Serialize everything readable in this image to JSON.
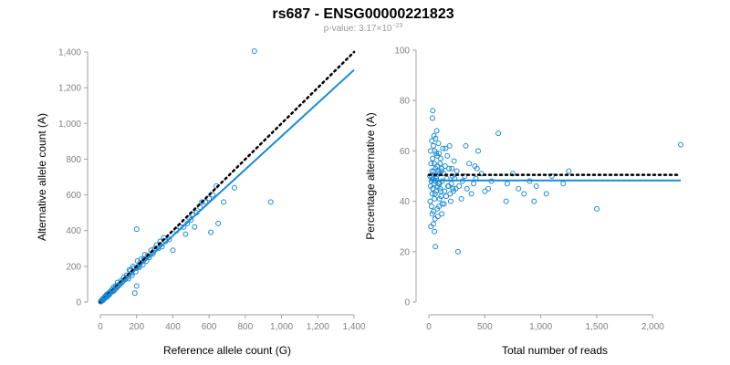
{
  "title": "rs687 - ENSG00000221823",
  "subtitle": {
    "prefix": "p-value: 3.17×10",
    "exponent": "−23"
  },
  "colors": {
    "points": "#1a8ad6",
    "fit": "#1a8ad6",
    "reference": "#000000"
  },
  "chart_data": [
    {
      "type": "scatter",
      "xlabel": "Reference allele count (G)",
      "ylabel": "Alternative allele count (A)",
      "xlim": [
        0,
        1400
      ],
      "ylim": [
        0,
        1400
      ],
      "xticks": [
        0,
        200,
        400,
        600,
        800,
        1000,
        1200,
        1400
      ],
      "yticks": [
        0,
        200,
        400,
        600,
        800,
        1000,
        1200,
        1400
      ],
      "xtick_labels": [
        "0",
        "200",
        "400",
        "600",
        "800",
        "1,000",
        "1,200",
        "1,400"
      ],
      "ytick_labels": [
        "0",
        "200",
        "400",
        "600",
        "800",
        "1,000",
        "1,200",
        "1,400"
      ],
      "reference_line": [
        [
          0,
          0
        ],
        [
          1400,
          1400
        ]
      ],
      "fit_line": [
        [
          0,
          0
        ],
        [
          1400,
          1300
        ]
      ],
      "points": [
        [
          850,
          1405
        ],
        [
          940,
          560
        ],
        [
          200,
          408
        ],
        [
          740,
          640
        ],
        [
          640,
          650
        ],
        [
          620,
          600
        ],
        [
          650,
          440
        ],
        [
          610,
          390
        ],
        [
          560,
          560
        ],
        [
          680,
          560
        ],
        [
          500,
          460
        ],
        [
          520,
          420
        ],
        [
          480,
          440
        ],
        [
          470,
          380
        ],
        [
          400,
          290
        ],
        [
          350,
          360
        ],
        [
          330,
          340
        ],
        [
          300,
          300
        ],
        [
          260,
          260
        ],
        [
          240,
          240
        ],
        [
          220,
          220
        ],
        [
          210,
          200
        ],
        [
          200,
          190
        ],
        [
          180,
          200
        ],
        [
          160,
          180
        ],
        [
          200,
          90
        ],
        [
          190,
          50
        ],
        [
          170,
          160
        ],
        [
          150,
          140
        ],
        [
          140,
          130
        ],
        [
          130,
          140
        ],
        [
          120,
          110
        ],
        [
          110,
          100
        ],
        [
          100,
          95
        ],
        [
          95,
          110
        ],
        [
          90,
          80
        ],
        [
          85,
          90
        ],
        [
          80,
          70
        ],
        [
          75,
          85
        ],
        [
          70,
          60
        ],
        [
          65,
          72
        ],
        [
          60,
          55
        ],
        [
          55,
          60
        ],
        [
          50,
          48
        ],
        [
          48,
          40
        ],
        [
          45,
          50
        ],
        [
          42,
          38
        ],
        [
          40,
          45
        ],
        [
          38,
          30
        ],
        [
          35,
          42
        ],
        [
          32,
          28
        ],
        [
          30,
          35
        ],
        [
          28,
          25
        ],
        [
          25,
          30
        ],
        [
          22,
          18
        ],
        [
          20,
          24
        ],
        [
          18,
          15
        ],
        [
          16,
          20
        ],
        [
          14,
          12
        ],
        [
          12,
          16
        ],
        [
          10,
          8
        ],
        [
          8,
          12
        ],
        [
          6,
          5
        ],
        [
          5,
          8
        ],
        [
          4,
          3
        ],
        [
          3,
          5
        ],
        [
          2,
          2
        ],
        [
          15,
          10
        ],
        [
          25,
          22
        ],
        [
          35,
          28
        ],
        [
          45,
          38
        ],
        [
          55,
          50
        ],
        [
          65,
          58
        ],
        [
          75,
          65
        ],
        [
          85,
          78
        ],
        [
          95,
          88
        ],
        [
          105,
          95
        ],
        [
          115,
          120
        ],
        [
          125,
          118
        ],
        [
          135,
          125
        ],
        [
          145,
          150
        ],
        [
          155,
          130
        ],
        [
          165,
          175
        ],
        [
          175,
          150
        ],
        [
          185,
          190
        ],
        [
          195,
          170
        ],
        [
          205,
          230
        ],
        [
          215,
          195
        ],
        [
          225,
          240
        ],
        [
          235,
          210
        ],
        [
          245,
          265
        ],
        [
          255,
          230
        ],
        [
          270,
          250
        ],
        [
          280,
          290
        ],
        [
          290,
          270
        ],
        [
          310,
          320
        ],
        [
          320,
          300
        ],
        [
          340,
          310
        ],
        [
          360,
          340
        ],
        [
          380,
          350
        ],
        [
          420,
          400
        ],
        [
          440,
          420
        ],
        [
          460,
          420
        ],
        [
          490,
          470
        ],
        [
          510,
          490
        ],
        [
          530,
          500
        ],
        [
          550,
          530
        ],
        [
          580,
          560
        ],
        [
          600,
          580
        ]
      ]
    },
    {
      "type": "scatter",
      "xlabel": "Total number of reads",
      "ylabel": "Percentage alternative (A)",
      "xlim": [
        0,
        2250
      ],
      "ylim": [
        0,
        100
      ],
      "xticks": [
        0,
        500,
        1000,
        1500,
        2000
      ],
      "yticks": [
        0,
        20,
        40,
        60,
        80,
        100
      ],
      "xtick_labels": [
        "0",
        "500",
        "1,000",
        "1,500",
        "2,000"
      ],
      "ytick_labels": [
        "0",
        "20",
        "40",
        "60",
        "80",
        "100"
      ],
      "reference_line": [
        [
          0,
          50.5
        ],
        [
          2250,
          50.5
        ]
      ],
      "fit_line": [
        [
          0,
          48.3
        ],
        [
          2250,
          48.3
        ]
      ],
      "points": [
        [
          2250,
          62.5
        ],
        [
          1500,
          37
        ],
        [
          1250,
          52
        ],
        [
          1200,
          47
        ],
        [
          1100,
          50
        ],
        [
          1050,
          43
        ],
        [
          960,
          46
        ],
        [
          940,
          40
        ],
        [
          900,
          48
        ],
        [
          850,
          43
        ],
        [
          800,
          45
        ],
        [
          750,
          51
        ],
        [
          700,
          47
        ],
        [
          690,
          40
        ],
        [
          620,
          67
        ],
        [
          560,
          48
        ],
        [
          530,
          45
        ],
        [
          500,
          44
        ],
        [
          470,
          51
        ],
        [
          440,
          60
        ],
        [
          430,
          53
        ],
        [
          420,
          49
        ],
        [
          410,
          54
        ],
        [
          400,
          47
        ],
        [
          380,
          43
        ],
        [
          360,
          55
        ],
        [
          340,
          45
        ],
        [
          330,
          62
        ],
        [
          320,
          50
        ],
        [
          300,
          48
        ],
        [
          290,
          41
        ],
        [
          270,
          46
        ],
        [
          260,
          20
        ],
        [
          250,
          52
        ],
        [
          240,
          45
        ],
        [
          230,
          49
        ],
        [
          220,
          44
        ],
        [
          210,
          50
        ],
        [
          200,
          47
        ],
        [
          190,
          43
        ],
        [
          180,
          53
        ],
        [
          170,
          46
        ],
        [
          160,
          49
        ],
        [
          150,
          61
        ],
        [
          140,
          44
        ],
        [
          130,
          51
        ],
        [
          120,
          48
        ],
        [
          110,
          42
        ],
        [
          100,
          55
        ],
        [
          95,
          47
        ],
        [
          90,
          38
        ],
        [
          85,
          52
        ],
        [
          80,
          46
        ],
        [
          75,
          58
        ],
        [
          70,
          50
        ],
        [
          65,
          44
        ],
        [
          60,
          53
        ],
        [
          58,
          22
        ],
        [
          55,
          48
        ],
        [
          52,
          60
        ],
        [
          50,
          41
        ],
        [
          48,
          55
        ],
        [
          45,
          47
        ],
        [
          42,
          36
        ],
        [
          40,
          62
        ],
        [
          38,
          49
        ],
        [
          36,
          45
        ],
        [
          34,
          57
        ],
        [
          32,
          73
        ],
        [
          30,
          43
        ],
        [
          28,
          52
        ],
        [
          26,
          64
        ],
        [
          24,
          38
        ],
        [
          22,
          48
        ],
        [
          20,
          55
        ],
        [
          18,
          30
        ],
        [
          16,
          46
        ],
        [
          14,
          60
        ],
        [
          12,
          40
        ],
        [
          10,
          50
        ],
        [
          35,
          76
        ],
        [
          45,
          66
        ],
        [
          55,
          33
        ],
        [
          65,
          59
        ],
        [
          75,
          37
        ],
        [
          85,
          63
        ],
        [
          95,
          41
        ],
        [
          105,
          57
        ],
        [
          115,
          35
        ],
        [
          125,
          61
        ],
        [
          135,
          39
        ],
        [
          145,
          54
        ],
        [
          155,
          42
        ],
        [
          165,
          58
        ],
        [
          175,
          46
        ],
        [
          185,
          62
        ],
        [
          195,
          40
        ],
        [
          205,
          53
        ],
        [
          215,
          45
        ],
        [
          225,
          56
        ],
        [
          30,
          35
        ],
        [
          40,
          31
        ],
        [
          50,
          28
        ],
        [
          60,
          65
        ],
        [
          70,
          68
        ],
        [
          80,
          34
        ],
        [
          90,
          59
        ],
        [
          100,
          45
        ],
        [
          110,
          52
        ],
        [
          120,
          39
        ],
        [
          25,
          50
        ],
        [
          35,
          45
        ],
        [
          45,
          52
        ],
        [
          55,
          43
        ],
        [
          65,
          49
        ],
        [
          75,
          54
        ],
        [
          85,
          47
        ],
        [
          95,
          51
        ],
        [
          105,
          44
        ],
        [
          115,
          53
        ]
      ]
    }
  ]
}
